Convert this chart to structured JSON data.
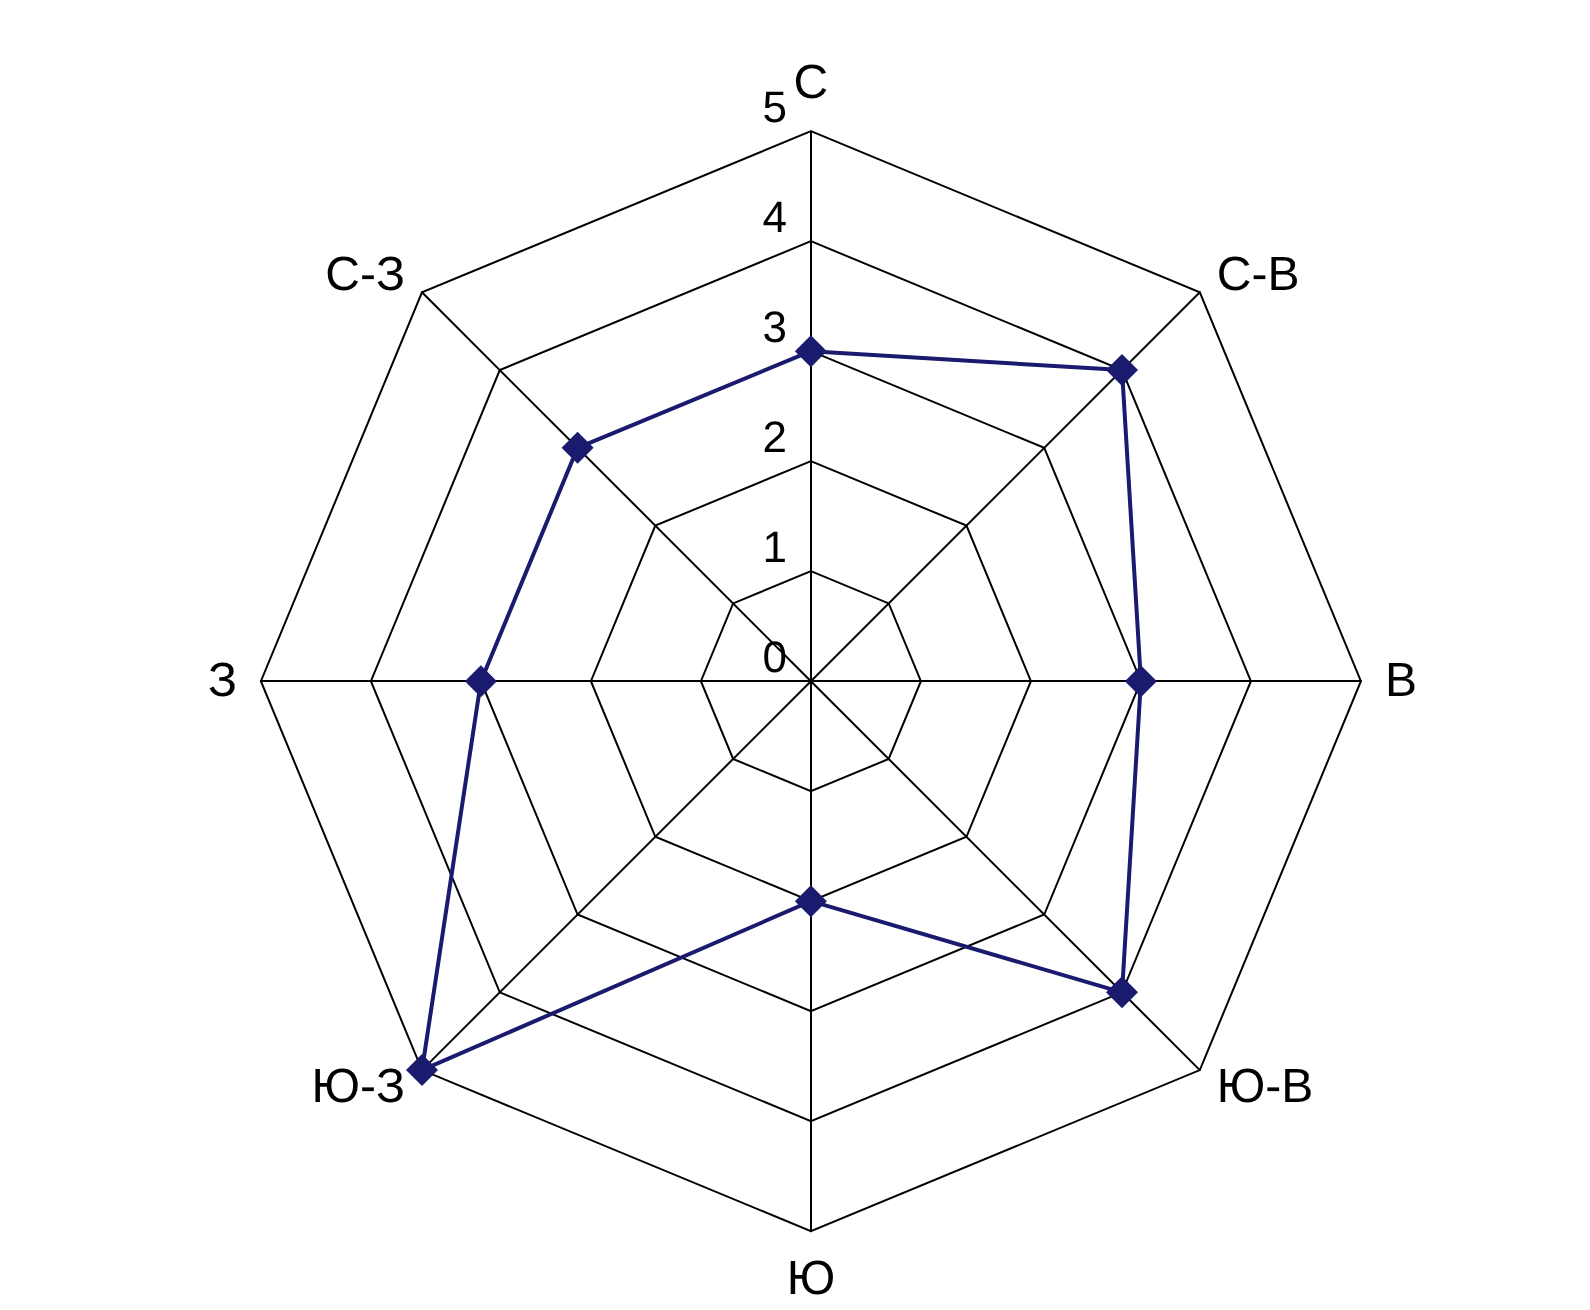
{
  "chart_data": {
    "type": "radar",
    "categories": [
      "С",
      "С-В",
      "В",
      "Ю-В",
      "Ю",
      "Ю-З",
      "З",
      "С-З"
    ],
    "series": [
      {
        "color": "#1a1a6e",
        "values": [
          3,
          4,
          3,
          4,
          2,
          5,
          3,
          3
        ]
      }
    ],
    "ylim": [
      0,
      5
    ],
    "yticks": [
      0,
      1,
      2,
      3,
      4,
      5
    ],
    "grid": true,
    "marker": "diamond",
    "line_style": "solid"
  }
}
